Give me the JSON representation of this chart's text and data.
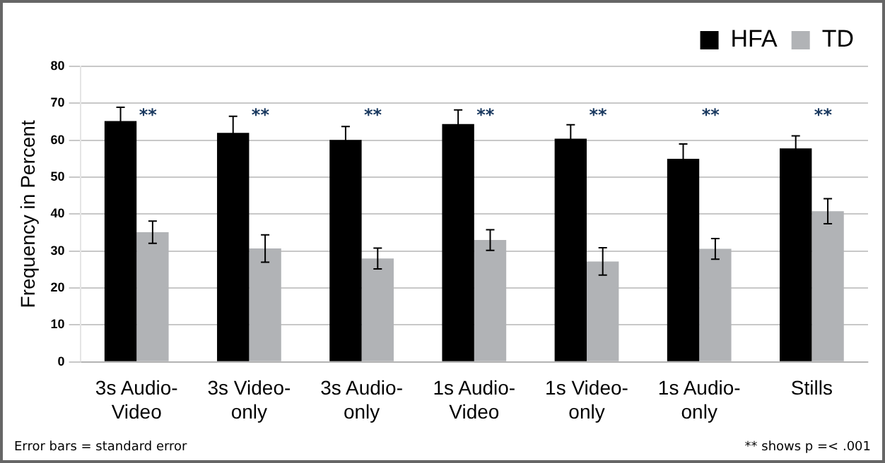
{
  "chart_data": {
    "type": "bar",
    "ylabel": "Frequency in Percent",
    "categories": [
      "3s Audio-Video",
      "3s Video-only",
      "3s Audio-only",
      "1s Audio-Video",
      "1s Video-only",
      "1s Audio-only",
      "Stills"
    ],
    "series": [
      {
        "name": "HFA",
        "color": "#000000",
        "values": [
          65.2,
          62,
          60.1,
          64.4,
          60.4,
          55,
          57.8
        ],
        "errors": [
          3.7,
          4.5,
          3.6,
          3.8,
          3.8,
          4,
          3.4
        ]
      },
      {
        "name": "TD",
        "color": "#b1b3b6",
        "values": [
          35.1,
          30.7,
          28,
          33,
          27.2,
          30.6,
          40.8
        ],
        "errors": [
          3,
          3.7,
          2.8,
          2.8,
          3.7,
          2.8,
          3.4
        ]
      }
    ],
    "ylim": [
      0,
      80
    ],
    "yticks": [
      0,
      10,
      20,
      30,
      40,
      50,
      60,
      70,
      80
    ],
    "grid": "y",
    "legend": "top right",
    "annotations": [
      "**",
      "**",
      "**",
      "**",
      "**",
      "**",
      "**",
      "Error bars = standard error",
      "** shows p =< .001"
    ]
  }
}
